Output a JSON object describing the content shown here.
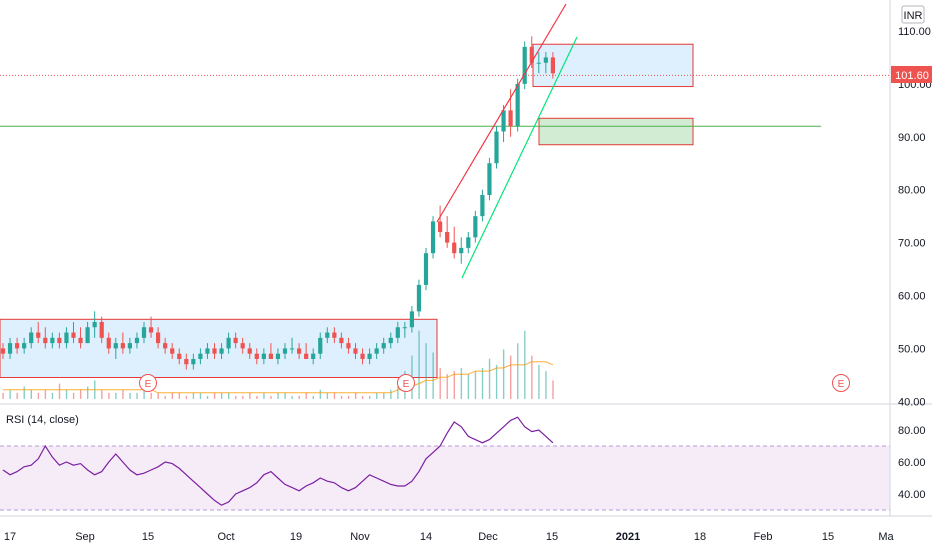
{
  "chart_data": {
    "type": "candlestick",
    "currency": "INR",
    "last_price_label": "101.60",
    "ylim": [
      40,
      114
    ],
    "price_ticks": [
      "110.00",
      "100.00",
      "90.00",
      "80.00",
      "70.00",
      "60.00",
      "50.00",
      "40.00"
    ],
    "x_ticks": [
      "17",
      "Sep",
      "15",
      "Oct",
      "19",
      "Nov",
      "14",
      "Dec",
      "15",
      "2021",
      "18",
      "Feb",
      "15",
      "Ma"
    ],
    "earnings_marker": "E",
    "candles": [
      [
        50,
        51,
        48,
        49
      ],
      [
        49,
        52,
        48,
        51
      ],
      [
        51,
        52,
        49,
        50
      ],
      [
        50,
        52,
        49,
        51
      ],
      [
        51,
        54,
        50,
        53
      ],
      [
        53,
        55,
        51,
        52
      ],
      [
        52,
        54,
        50,
        51
      ],
      [
        51,
        53,
        50,
        52
      ],
      [
        52,
        53,
        50,
        51
      ],
      [
        51,
        54,
        50,
        53
      ],
      [
        53,
        55,
        51,
        52
      ],
      [
        52,
        54,
        50,
        51
      ],
      [
        51,
        55,
        51,
        54
      ],
      [
        54,
        57,
        52,
        55
      ],
      [
        55,
        56,
        51,
        52
      ],
      [
        52,
        53,
        49,
        50
      ],
      [
        50,
        52,
        48,
        51
      ],
      [
        51,
        53,
        49,
        50
      ],
      [
        50,
        52,
        49,
        51
      ],
      [
        51,
        53,
        50,
        52
      ],
      [
        52,
        55,
        51,
        54
      ],
      [
        54,
        56,
        52,
        53
      ],
      [
        53,
        54,
        50,
        51
      ],
      [
        51,
        52,
        49,
        50
      ],
      [
        50,
        51,
        48,
        49
      ],
      [
        49,
        50,
        47,
        48
      ],
      [
        48,
        49,
        46,
        47
      ],
      [
        47,
        49,
        46,
        48
      ],
      [
        48,
        50,
        47,
        49
      ],
      [
        49,
        51,
        48,
        50
      ],
      [
        50,
        51,
        48,
        49
      ],
      [
        49,
        51,
        48,
        50
      ],
      [
        50,
        53,
        49,
        52
      ],
      [
        52,
        53,
        50,
        51
      ],
      [
        51,
        52,
        49,
        50
      ],
      [
        50,
        51,
        48,
        49
      ],
      [
        49,
        50,
        47,
        48
      ],
      [
        48,
        50,
        47,
        49
      ],
      [
        49,
        51,
        48,
        48
      ],
      [
        48,
        50,
        47,
        49
      ],
      [
        49,
        51,
        48,
        50
      ],
      [
        50,
        52,
        49,
        50
      ],
      [
        50,
        51,
        48,
        49
      ],
      [
        49,
        51,
        48,
        48
      ],
      [
        48,
        50,
        47,
        49
      ],
      [
        49,
        53,
        48,
        52
      ],
      [
        52,
        54,
        51,
        53
      ],
      [
        53,
        54,
        51,
        52
      ],
      [
        52,
        53,
        50,
        51
      ],
      [
        51,
        52,
        49,
        50
      ],
      [
        50,
        51,
        48,
        49
      ],
      [
        49,
        50,
        47,
        48
      ],
      [
        48,
        50,
        47,
        49
      ],
      [
        49,
        51,
        48,
        50
      ],
      [
        50,
        52,
        49,
        51
      ],
      [
        51,
        53,
        50,
        52
      ],
      [
        52,
        55,
        51,
        54
      ],
      [
        54,
        55,
        52,
        54
      ],
      [
        54,
        58,
        53,
        57
      ],
      [
        57,
        63,
        56,
        62
      ],
      [
        62,
        69,
        61,
        68
      ],
      [
        68,
        75,
        67,
        74
      ],
      [
        74,
        77,
        71,
        72
      ],
      [
        72,
        75,
        69,
        70
      ],
      [
        70,
        73,
        67,
        68
      ],
      [
        68,
        71,
        66,
        69
      ],
      [
        69,
        72,
        68,
        71
      ],
      [
        71,
        76,
        70,
        75
      ],
      [
        75,
        80,
        74,
        79
      ],
      [
        79,
        86,
        78,
        85
      ],
      [
        85,
        92,
        84,
        91
      ],
      [
        91,
        96,
        89,
        95
      ],
      [
        95,
        99,
        90,
        92
      ],
      [
        92,
        101,
        91,
        100
      ],
      [
        100,
        108,
        99,
        107
      ],
      [
        107,
        109,
        103,
        104
      ],
      [
        104,
        106,
        102,
        104
      ],
      [
        104,
        106,
        102,
        105
      ],
      [
        105,
        106,
        101,
        102
      ]
    ],
    "volume": [
      2,
      3,
      2,
      4,
      3,
      2,
      3,
      2,
      5,
      3,
      2,
      3,
      4,
      6,
      3,
      2,
      2,
      3,
      2,
      2,
      3,
      2,
      2,
      1,
      2,
      2,
      1,
      2,
      2,
      1,
      2,
      2,
      2,
      1,
      1,
      2,
      1,
      2,
      1,
      2,
      2,
      1,
      1,
      2,
      1,
      3,
      2,
      2,
      1,
      1,
      2,
      1,
      1,
      2,
      2,
      3,
      4,
      9,
      14,
      22,
      18,
      15,
      10,
      8,
      9,
      10,
      8,
      9,
      10,
      13,
      11,
      16,
      14,
      18,
      22,
      14,
      11,
      9,
      6
    ],
    "volume_ma": [
      3,
      3,
      3,
      3,
      3,
      3,
      3,
      3,
      3,
      3,
      3,
      3,
      3,
      3,
      3,
      3,
      3,
      3,
      3,
      3,
      3,
      3,
      2,
      2,
      2,
      2,
      2,
      2,
      2,
      2,
      2,
      2,
      2,
      2,
      2,
      2,
      2,
      2,
      2,
      2,
      2,
      2,
      2,
      2,
      2,
      2,
      2,
      2,
      2,
      2,
      2,
      2,
      2,
      2,
      2,
      2,
      3,
      3,
      4,
      5,
      6,
      6,
      7,
      7,
      8,
      8,
      8,
      9,
      9,
      9,
      10,
      10,
      11,
      11,
      11,
      12,
      12,
      12,
      11
    ],
    "rsi_label": "RSI (14, close)",
    "rsi_ticks": [
      "80.00",
      "60.00",
      "40.00"
    ],
    "rsi_band": [
      30,
      70
    ],
    "rsi": [
      55,
      52,
      54,
      57,
      58,
      62,
      70,
      63,
      58,
      60,
      58,
      59,
      55,
      52,
      54,
      60,
      65,
      60,
      55,
      52,
      53,
      55,
      57,
      60,
      59,
      56,
      52,
      48,
      44,
      40,
      36,
      33,
      35,
      40,
      42,
      44,
      47,
      52,
      54,
      50,
      46,
      44,
      42,
      45,
      47,
      50,
      48,
      47,
      44,
      42,
      44,
      48,
      52,
      50,
      48,
      46,
      45,
      45,
      48,
      54,
      62,
      66,
      70,
      78,
      85,
      82,
      76,
      74,
      72,
      74,
      78,
      82,
      86,
      88,
      82,
      79,
      80,
      76,
      72
    ],
    "price_lines": [
      92,
      101.6
    ]
  }
}
